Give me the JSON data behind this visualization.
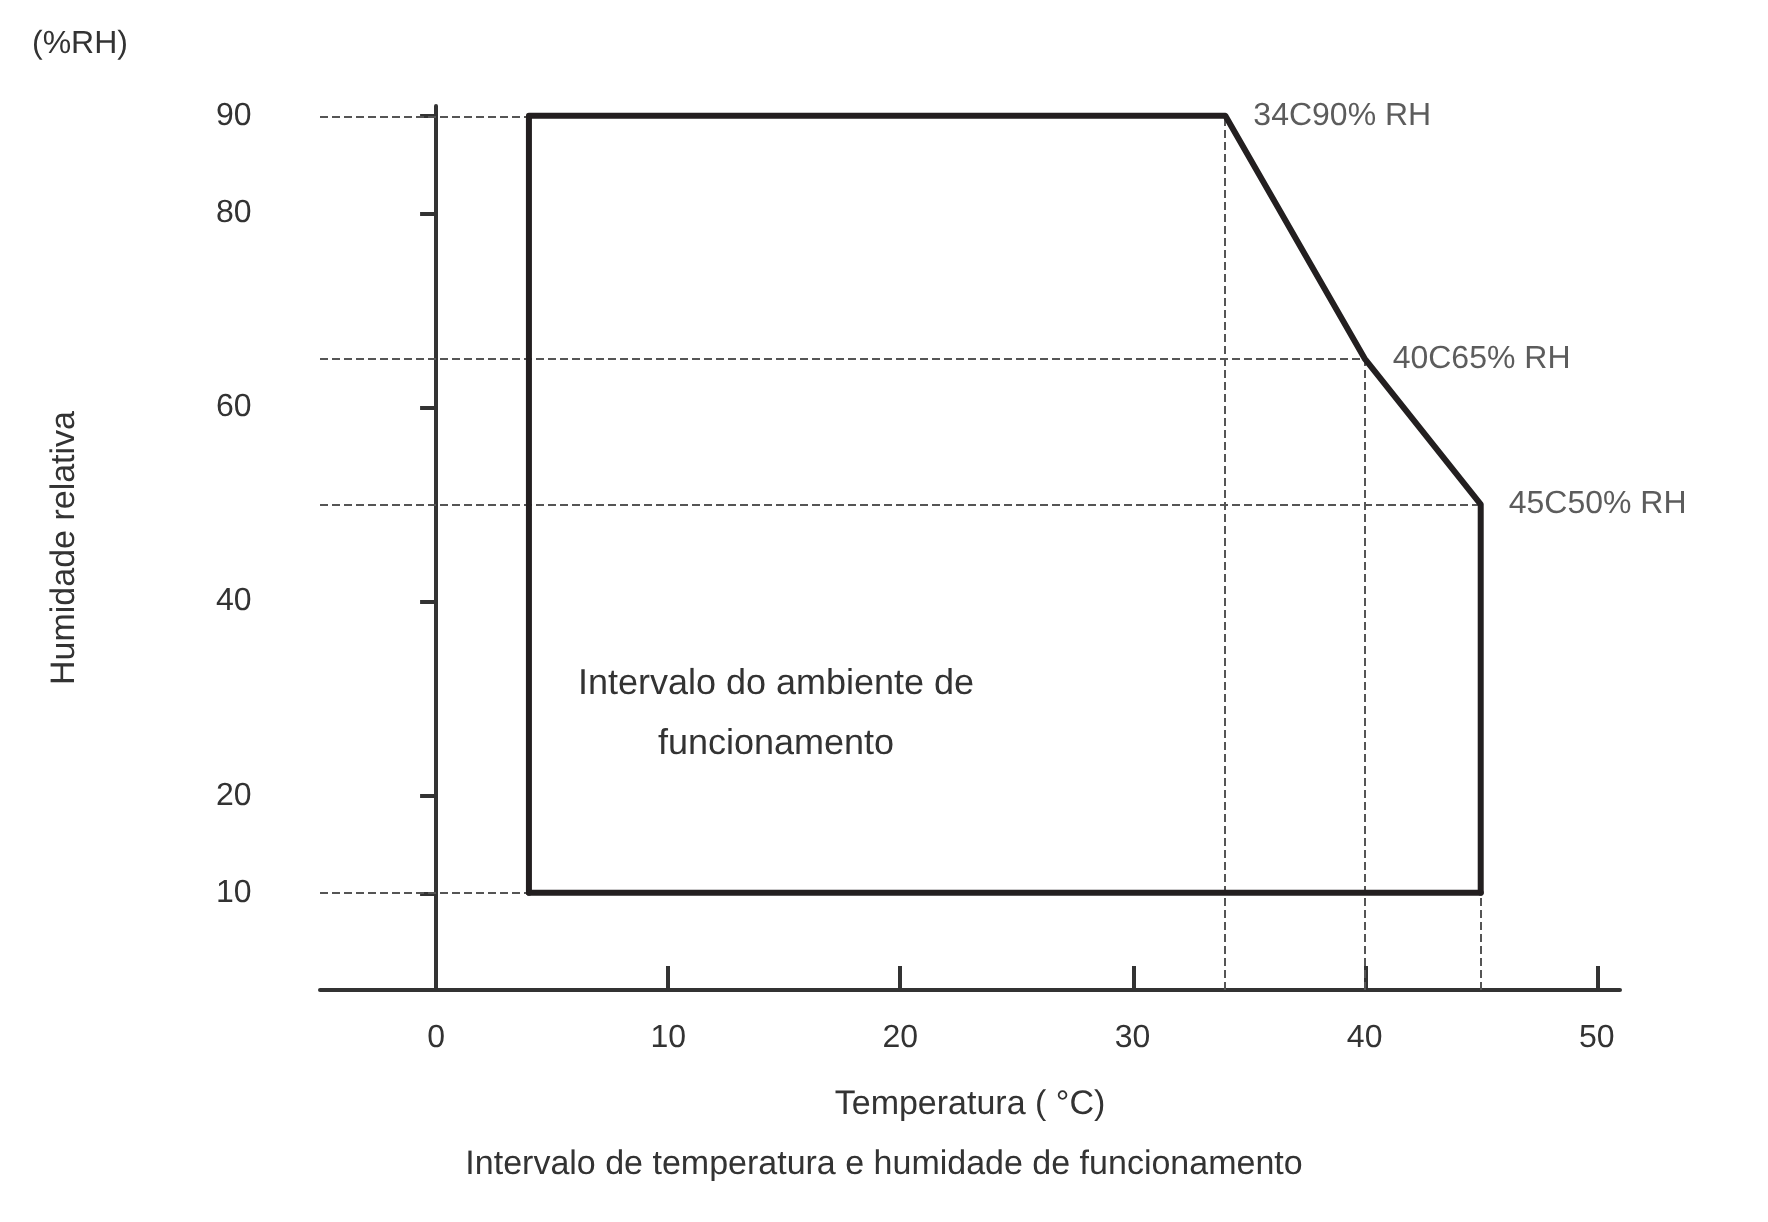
{
  "chart_data": {
    "type": "line",
    "title": "Intervalo de temperatura e humidade de funcionamento",
    "xlabel": "Temperatura ( °C)",
    "ylabel": "Humidade relativa",
    "series": [
      {
        "color": "#231f20",
        "x": [
          4,
          4,
          34,
          40,
          45,
          45
        ],
        "values": [
          10,
          90,
          90,
          65,
          50,
          10
        ]
      },
      {
        "color": "#231f20",
        "x": [
          4,
          45
        ],
        "values": [
          10,
          10
        ]
      }
    ],
    "xlim": [
      -5,
      51
    ],
    "xticks": [
      0,
      10,
      20,
      30,
      40,
      50
    ],
    "ylim": [
      0,
      91
    ],
    "yticks": [
      10,
      20,
      40,
      60,
      80,
      90
    ],
    "grid": false,
    "marker": "none",
    "line_style": "solid",
    "ref_lines": [
      {
        "axis": "y",
        "value": 90,
        "line_style": "dashed",
        "color": "#555555"
      },
      {
        "axis": "y",
        "value": 65,
        "line_style": "dashed",
        "color": "#555555"
      },
      {
        "axis": "y",
        "value": 50,
        "line_style": "dashed",
        "color": "#555555"
      },
      {
        "axis": "y",
        "value": 10,
        "line_style": "dashed",
        "color": "#555555"
      },
      {
        "axis": "x",
        "value": 34,
        "line_style": "dashed",
        "color": "#555555"
      },
      {
        "axis": "x",
        "value": 40,
        "line_style": "dashed",
        "color": "#555555"
      },
      {
        "axis": "x",
        "value": 45,
        "line_style": "dashed",
        "color": "#555555"
      }
    ],
    "annotations": [
      "(%RH)",
      "Intervalo do ambiente de\nfuncionamento",
      {
        "text": "34C90% RH",
        "x": 34,
        "y": 90
      },
      {
        "text": "40C65% RH",
        "x": 40,
        "y": 65
      },
      {
        "text": "45C50% RH",
        "x": 45,
        "y": 50
      }
    ]
  }
}
